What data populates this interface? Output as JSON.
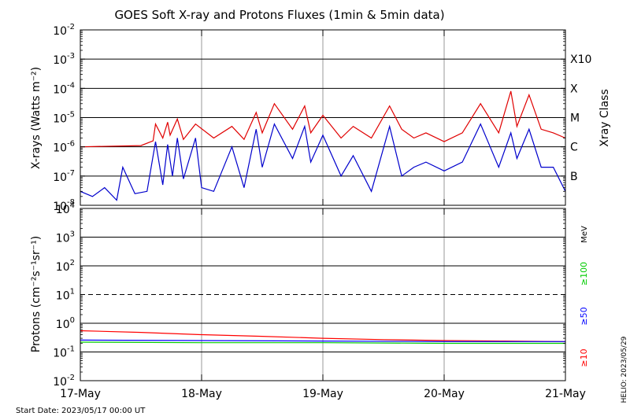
{
  "title": "GOES Soft X-ray and Protons Fluxes   (1min & 5min data)",
  "start_date": "Start Date: 2023/05/17 00:00 UT",
  "helio_stamp": "HELIO: 2023/05/29",
  "colors": {
    "xray_long": "#e00000",
    "xray_short": "#0000cc",
    "proton_10": "#ff0000",
    "proton_50": "#0000ff",
    "proton_100": "#00cc00",
    "frame": "#000000",
    "grid": "#9a9a9a"
  },
  "chart_data": [
    {
      "type": "line",
      "panel": "xray",
      "ylabel": "X-rays (Watts m⁻²)",
      "yscale": "log",
      "ylim": [
        1e-08,
        0.01
      ],
      "yticks": [
        {
          "value": 1e-08,
          "label_base": "10",
          "label_exp": "-8"
        },
        {
          "value": 1e-07,
          "label_base": "10",
          "label_exp": "-7"
        },
        {
          "value": 1e-06,
          "label_base": "10",
          "label_exp": "-6"
        },
        {
          "value": 1e-05,
          "label_base": "10",
          "label_exp": "-5"
        },
        {
          "value": 0.0001,
          "label_base": "10",
          "label_exp": "-4"
        },
        {
          "value": 0.001,
          "label_base": "10",
          "label_exp": "-3"
        },
        {
          "value": 0.01,
          "label_base": "10",
          "label_exp": "-2"
        }
      ],
      "right_axis_title": "Xray Class",
      "classes": [
        {
          "label": "X10",
          "value": 0.001
        },
        {
          "label": "X",
          "value": 0.0001
        },
        {
          "label": "M",
          "value": 1e-05
        },
        {
          "label": "C",
          "value": 1e-06
        },
        {
          "label": "B",
          "value": 1e-07
        }
      ],
      "series": [
        {
          "color_key": "xray_long",
          "x": [
            0.0,
            0.5,
            0.6,
            0.62,
            0.68,
            0.72,
            0.74,
            0.8,
            0.85,
            0.95,
            1.1,
            1.25,
            1.35,
            1.45,
            1.5,
            1.6,
            1.75,
            1.85,
            1.9,
            2.0,
            2.15,
            2.25,
            2.4,
            2.55,
            2.65,
            2.75,
            2.85,
            3.0,
            3.15,
            3.3,
            3.45,
            3.55,
            3.6,
            3.7,
            3.8,
            3.9,
            4.0
          ],
          "values": [
            1e-06,
            1.1e-06,
            1.6e-06,
            6e-06,
            2e-06,
            7e-06,
            2.5e-06,
            9e-06,
            1.8e-06,
            6e-06,
            2e-06,
            5e-06,
            1.8e-06,
            1.5e-05,
            3e-06,
            3e-05,
            4e-06,
            2.5e-05,
            3e-06,
            1.2e-05,
            2e-06,
            5e-06,
            2e-06,
            2.5e-05,
            4e-06,
            2e-06,
            3e-06,
            1.5e-06,
            3e-06,
            3e-05,
            3e-06,
            8e-05,
            5e-06,
            6e-05,
            4e-06,
            3e-06,
            2e-06
          ]
        },
        {
          "color_key": "xray_short",
          "x": [
            0.0,
            0.1,
            0.2,
            0.3,
            0.35,
            0.45,
            0.55,
            0.62,
            0.68,
            0.72,
            0.76,
            0.8,
            0.85,
            0.95,
            1.0,
            1.1,
            1.25,
            1.35,
            1.45,
            1.5,
            1.6,
            1.75,
            1.85,
            1.9,
            2.0,
            2.15,
            2.25,
            2.4,
            2.55,
            2.65,
            2.75,
            2.85,
            3.0,
            3.15,
            3.3,
            3.45,
            3.55,
            3.6,
            3.7,
            3.8,
            3.9,
            4.0
          ],
          "values": [
            3e-08,
            2e-08,
            4e-08,
            1.5e-08,
            2e-07,
            2.5e-08,
            3e-08,
            1.5e-06,
            5e-08,
            1.2e-06,
            1e-07,
            2e-06,
            8e-08,
            2e-06,
            4e-08,
            3e-08,
            1e-06,
            4e-08,
            4e-06,
            2e-07,
            6e-06,
            4e-07,
            5e-06,
            3e-07,
            2.5e-06,
            1e-07,
            5e-07,
            3e-08,
            5e-06,
            1e-07,
            2e-07,
            3e-07,
            1.5e-07,
            3e-07,
            6e-06,
            2e-07,
            3e-06,
            4e-07,
            4e-06,
            2e-07,
            2e-07,
            3e-08
          ]
        }
      ]
    },
    {
      "type": "line",
      "panel": "protons",
      "ylabel": "Protons (cm⁻²s⁻¹sr⁻¹)",
      "yscale": "log",
      "ylim": [
        0.01,
        10000
      ],
      "yticks": [
        {
          "value": 0.01,
          "label_base": "10",
          "label_exp": "-2"
        },
        {
          "value": 0.1,
          "label_base": "10",
          "label_exp": "-1"
        },
        {
          "value": 1,
          "label_base": "10",
          "label_exp": "0"
        },
        {
          "value": 10,
          "label_base": "10",
          "label_exp": "1"
        },
        {
          "value": 100,
          "label_base": "10",
          "label_exp": "2"
        },
        {
          "value": 1000,
          "label_base": "10",
          "label_exp": "3"
        },
        {
          "value": 10000,
          "label_base": "10",
          "label_exp": "4"
        }
      ],
      "threshold": 10,
      "unit_label": "MeV",
      "legend": [
        {
          "label": "≥10",
          "color_key": "proton_10"
        },
        {
          "label": "≥50",
          "color_key": "proton_50"
        },
        {
          "label": "≥100",
          "color_key": "proton_100"
        }
      ],
      "series": [
        {
          "name": "≥10",
          "color_key": "proton_10",
          "x": [
            0.0,
            0.5,
            1.0,
            1.5,
            2.0,
            2.5,
            3.0,
            3.5,
            4.0
          ],
          "values": [
            0.55,
            0.48,
            0.4,
            0.35,
            0.3,
            0.27,
            0.25,
            0.24,
            0.23
          ]
        },
        {
          "name": "≥50",
          "color_key": "proton_50",
          "x": [
            0.0,
            1.0,
            2.0,
            3.0,
            4.0
          ],
          "values": [
            0.26,
            0.25,
            0.24,
            0.23,
            0.23
          ]
        },
        {
          "name": "≥100",
          "color_key": "proton_100",
          "x": [
            0.0,
            1.0,
            2.0,
            3.0,
            4.0
          ],
          "values": [
            0.22,
            0.21,
            0.21,
            0.2,
            0.2
          ]
        }
      ]
    }
  ],
  "xaxis": {
    "xlim": [
      0,
      4
    ],
    "ticks": [
      {
        "value": 0,
        "label": "17-May"
      },
      {
        "value": 1,
        "label": "18-May"
      },
      {
        "value": 2,
        "label": "19-May"
      },
      {
        "value": 3,
        "label": "20-May"
      },
      {
        "value": 4,
        "label": "21-May"
      }
    ]
  }
}
